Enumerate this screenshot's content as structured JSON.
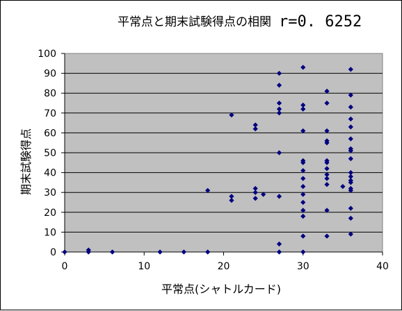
{
  "chart_data": {
    "type": "scatter",
    "title": "平常点と期末試験得点の相関",
    "annotation": "r=0. 6252",
    "xlabel": "平常点(シャトルカード)",
    "ylabel": "期末試験得点",
    "xlim": [
      0,
      40
    ],
    "ylim": [
      0,
      100
    ],
    "x_ticks": [
      "0",
      "10",
      "20",
      "30",
      "40"
    ],
    "y_ticks": [
      "0",
      "10",
      "20",
      "30",
      "40",
      "50",
      "60",
      "70",
      "80",
      "90",
      "100"
    ],
    "grid": "horizontal",
    "plot_background": "#c0c0c0",
    "marker_color": "#000080",
    "marker": "diamond",
    "points": [
      [
        0,
        0
      ],
      [
        3,
        0
      ],
      [
        3,
        1
      ],
      [
        6,
        0
      ],
      [
        12,
        0
      ],
      [
        15,
        0
      ],
      [
        18,
        0
      ],
      [
        18,
        31
      ],
      [
        21,
        26
      ],
      [
        21,
        28
      ],
      [
        21,
        69
      ],
      [
        24,
        27
      ],
      [
        24,
        30
      ],
      [
        24,
        32
      ],
      [
        24,
        62
      ],
      [
        24,
        64
      ],
      [
        25,
        29
      ],
      [
        27,
        0
      ],
      [
        27,
        4
      ],
      [
        27,
        28
      ],
      [
        27,
        50
      ],
      [
        27,
        70
      ],
      [
        27,
        72
      ],
      [
        27,
        75
      ],
      [
        27,
        84
      ],
      [
        27,
        90
      ],
      [
        30,
        0
      ],
      [
        30,
        8
      ],
      [
        30,
        18
      ],
      [
        30,
        21
      ],
      [
        30,
        25
      ],
      [
        30,
        29
      ],
      [
        30,
        33
      ],
      [
        30,
        37
      ],
      [
        30,
        41
      ],
      [
        30,
        45
      ],
      [
        30,
        46
      ],
      [
        30,
        61
      ],
      [
        30,
        72
      ],
      [
        30,
        74
      ],
      [
        30,
        93
      ],
      [
        33,
        8
      ],
      [
        33,
        21
      ],
      [
        33,
        34
      ],
      [
        33,
        37
      ],
      [
        33,
        39
      ],
      [
        33,
        42
      ],
      [
        33,
        45
      ],
      [
        33,
        46
      ],
      [
        33,
        55
      ],
      [
        33,
        56
      ],
      [
        33,
        61
      ],
      [
        33,
        75
      ],
      [
        33,
        81
      ],
      [
        35,
        33
      ],
      [
        36,
        9
      ],
      [
        36,
        17
      ],
      [
        36,
        22
      ],
      [
        36,
        31
      ],
      [
        36,
        32
      ],
      [
        36,
        35
      ],
      [
        36,
        36
      ],
      [
        36,
        38
      ],
      [
        36,
        40
      ],
      [
        36,
        47
      ],
      [
        36,
        51
      ],
      [
        36,
        52
      ],
      [
        36,
        57
      ],
      [
        36,
        63
      ],
      [
        36,
        67
      ],
      [
        36,
        73
      ],
      [
        36,
        79
      ],
      [
        36,
        92
      ]
    ]
  }
}
